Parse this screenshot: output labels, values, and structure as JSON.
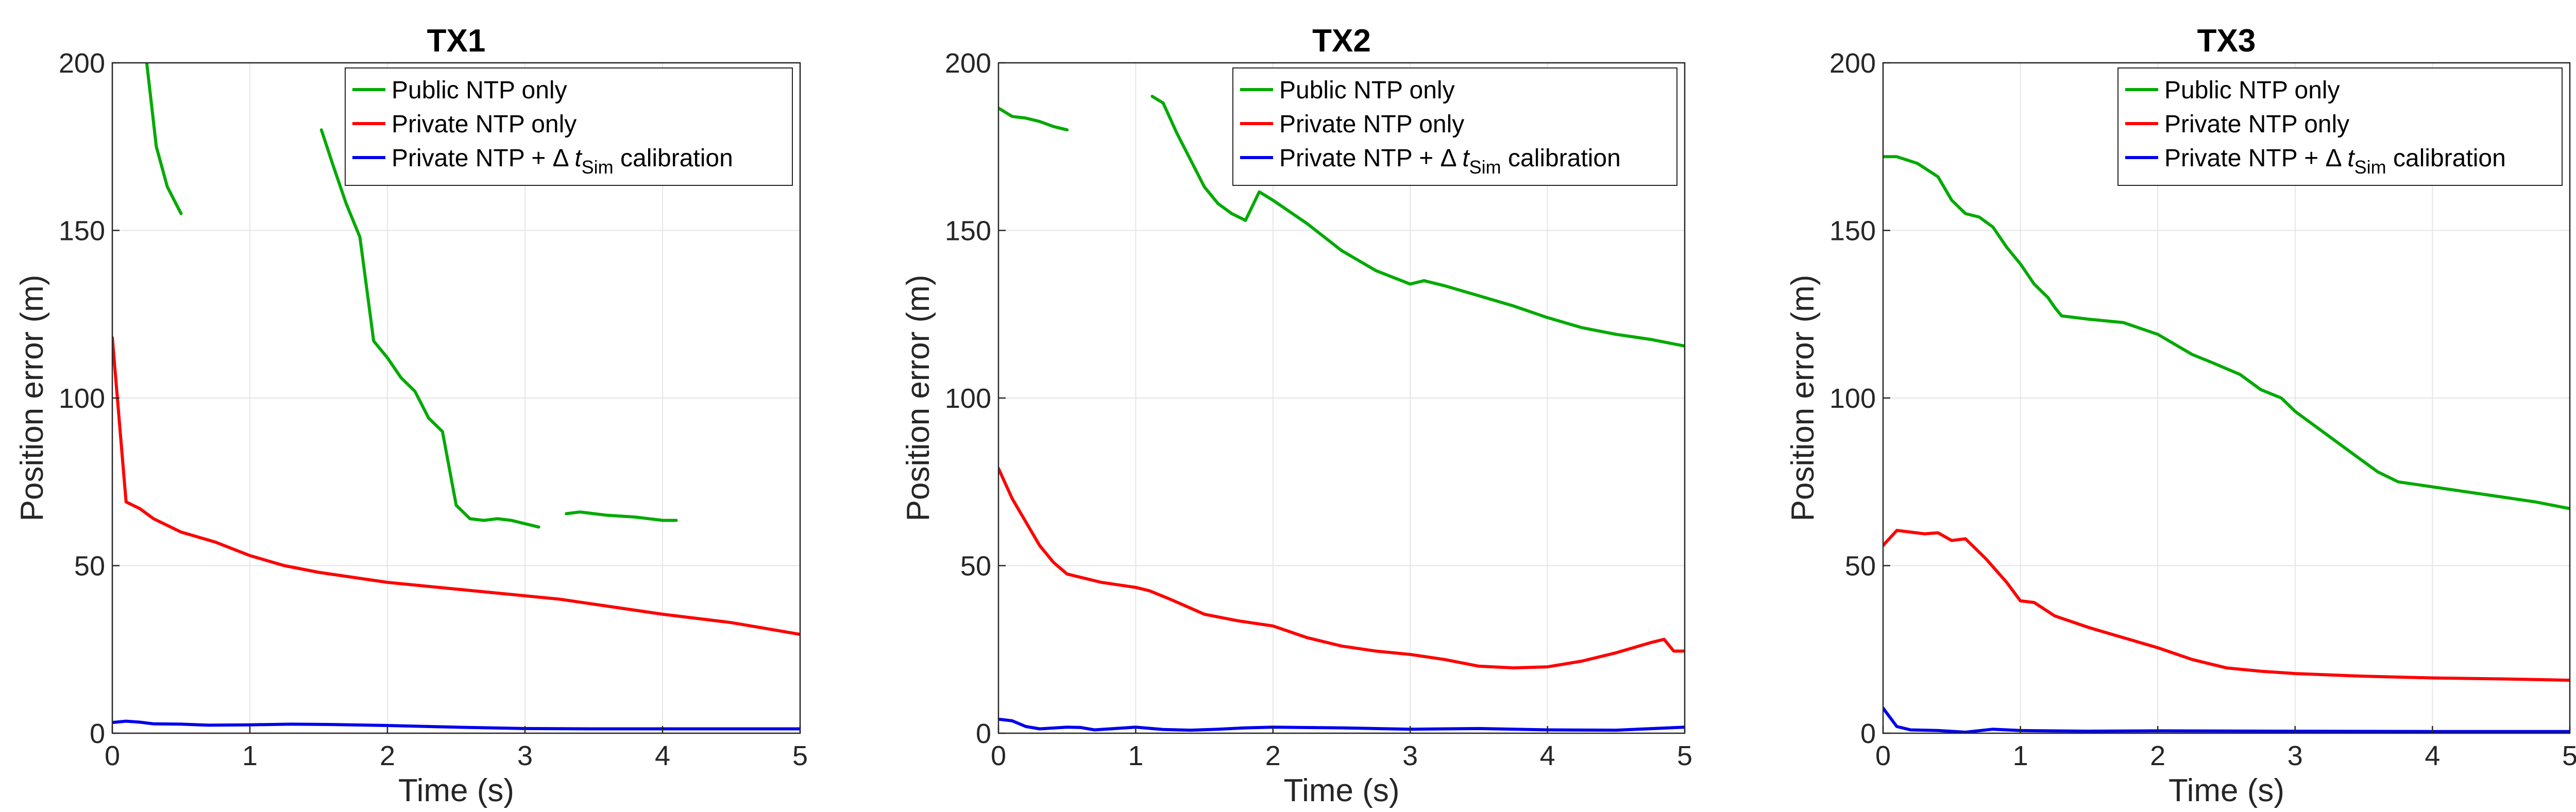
{
  "chart_data": [
    {
      "type": "line",
      "title": "TX1",
      "xlabel": "Time (s)",
      "ylabel": "Position error (m)",
      "xlim": [
        0,
        5
      ],
      "ylim": [
        0,
        200
      ],
      "xticks": [
        0,
        1,
        2,
        3,
        4,
        5
      ],
      "yticks": [
        0,
        50,
        100,
        150,
        200
      ],
      "grid": true,
      "legend_position": "top-right",
      "series": [
        {
          "name": "Public NTP only",
          "color": "#00aa00",
          "segments": [
            [
              [
                0.25,
                200
              ],
              [
                0.32,
                175
              ],
              [
                0.4,
                163
              ],
              [
                0.5,
                155
              ]
            ],
            [
              [
                1.52,
                180
              ],
              [
                1.6,
                170
              ],
              [
                1.7,
                158
              ],
              [
                1.8,
                148
              ],
              [
                1.9,
                117
              ],
              [
                2.0,
                112
              ],
              [
                2.1,
                106
              ],
              [
                2.2,
                102
              ],
              [
                2.3,
                94
              ],
              [
                2.4,
                90
              ],
              [
                2.5,
                68
              ],
              [
                2.6,
                64
              ],
              [
                2.7,
                63.5
              ],
              [
                2.8,
                64
              ],
              [
                2.9,
                63.5
              ],
              [
                3.0,
                62.5
              ],
              [
                3.1,
                61.5
              ]
            ],
            [
              [
                3.3,
                65.5
              ],
              [
                3.4,
                66
              ],
              [
                3.5,
                65.5
              ],
              [
                3.6,
                65
              ],
              [
                3.8,
                64.5
              ],
              [
                4.0,
                63.5
              ],
              [
                4.1,
                63.5
              ]
            ]
          ]
        },
        {
          "name": "Private NTP only",
          "color": "#ff0000",
          "segments": [
            [
              [
                0.0,
                118
              ],
              [
                0.1,
                69
              ],
              [
                0.2,
                67
              ],
              [
                0.3,
                64
              ],
              [
                0.5,
                60
              ],
              [
                0.75,
                57
              ],
              [
                1.0,
                53
              ],
              [
                1.25,
                50
              ],
              [
                1.5,
                48
              ],
              [
                2.0,
                45
              ],
              [
                2.5,
                43
              ],
              [
                3.0,
                41
              ],
              [
                3.25,
                40
              ],
              [
                3.5,
                38.5
              ],
              [
                4.0,
                35.5
              ],
              [
                4.5,
                33
              ],
              [
                5.0,
                29.5
              ]
            ]
          ]
        },
        {
          "name": "Private NTP + Δ t_Sim calibration",
          "color": "#0000ee",
          "segments": [
            [
              [
                0.0,
                3.2
              ],
              [
                0.1,
                3.6
              ],
              [
                0.2,
                3.3
              ],
              [
                0.3,
                2.8
              ],
              [
                0.5,
                2.7
              ],
              [
                0.7,
                2.4
              ],
              [
                1.0,
                2.5
              ],
              [
                1.3,
                2.7
              ],
              [
                1.6,
                2.6
              ],
              [
                2.0,
                2.3
              ],
              [
                2.5,
                1.8
              ],
              [
                3.0,
                1.4
              ],
              [
                3.5,
                1.3
              ],
              [
                4.0,
                1.3
              ],
              [
                4.5,
                1.3
              ],
              [
                5.0,
                1.3
              ]
            ]
          ]
        }
      ]
    },
    {
      "type": "line",
      "title": "TX2",
      "xlabel": "Time (s)",
      "ylabel": "Position error (m)",
      "xlim": [
        0,
        5
      ],
      "ylim": [
        0,
        200
      ],
      "xticks": [
        0,
        1,
        2,
        3,
        4,
        5
      ],
      "yticks": [
        0,
        50,
        100,
        150,
        200
      ],
      "grid": true,
      "legend_position": "top-right",
      "series": [
        {
          "name": "Public NTP only",
          "color": "#00aa00",
          "segments": [
            [
              [
                0.0,
                186.5
              ],
              [
                0.1,
                184
              ],
              [
                0.2,
                183.5
              ],
              [
                0.3,
                182.5
              ],
              [
                0.4,
                181
              ],
              [
                0.5,
                180
              ]
            ],
            [
              [
                1.12,
                190
              ],
              [
                1.2,
                188
              ],
              [
                1.3,
                179
              ],
              [
                1.4,
                171
              ],
              [
                1.5,
                163
              ],
              [
                1.6,
                158
              ],
              [
                1.7,
                155
              ],
              [
                1.8,
                153
              ],
              [
                1.9,
                161.5
              ],
              [
                2.0,
                159
              ],
              [
                2.25,
                152
              ],
              [
                2.5,
                144
              ],
              [
                2.75,
                138
              ],
              [
                3.0,
                134
              ],
              [
                3.1,
                135
              ],
              [
                3.25,
                133.5
              ],
              [
                3.5,
                130.5
              ],
              [
                3.75,
                127.5
              ],
              [
                4.0,
                124
              ],
              [
                4.25,
                121
              ],
              [
                4.5,
                119
              ],
              [
                4.75,
                117.5
              ],
              [
                5.0,
                115.5
              ]
            ]
          ]
        },
        {
          "name": "Private NTP only",
          "color": "#ff0000",
          "segments": [
            [
              [
                0.0,
                79
              ],
              [
                0.1,
                70
              ],
              [
                0.2,
                63
              ],
              [
                0.3,
                56
              ],
              [
                0.4,
                51
              ],
              [
                0.5,
                47.5
              ],
              [
                0.6,
                46.5
              ],
              [
                0.75,
                45
              ],
              [
                1.0,
                43.5
              ],
              [
                1.1,
                42.5
              ],
              [
                1.25,
                40
              ],
              [
                1.5,
                35.5
              ],
              [
                1.75,
                33.5
              ],
              [
                2.0,
                32
              ],
              [
                2.25,
                28.5
              ],
              [
                2.5,
                26
              ],
              [
                2.75,
                24.5
              ],
              [
                3.0,
                23.5
              ],
              [
                3.25,
                22
              ],
              [
                3.5,
                20
              ],
              [
                3.75,
                19.5
              ],
              [
                4.0,
                19.8
              ],
              [
                4.25,
                21.5
              ],
              [
                4.5,
                24
              ],
              [
                4.75,
                27
              ],
              [
                4.85,
                28
              ],
              [
                4.92,
                24.5
              ],
              [
                5.0,
                24.5
              ]
            ]
          ]
        },
        {
          "name": "Private NTP + Δ t_Sim calibration",
          "color": "#0000ee",
          "segments": [
            [
              [
                0.0,
                4.2
              ],
              [
                0.1,
                3.7
              ],
              [
                0.2,
                2.0
              ],
              [
                0.3,
                1.3
              ],
              [
                0.5,
                1.8
              ],
              [
                0.6,
                1.7
              ],
              [
                0.7,
                1.0
              ],
              [
                0.85,
                1.4
              ],
              [
                1.0,
                1.8
              ],
              [
                1.2,
                1.1
              ],
              [
                1.4,
                0.9
              ],
              [
                1.6,
                1.2
              ],
              [
                1.8,
                1.6
              ],
              [
                2.0,
                1.8
              ],
              [
                2.5,
                1.6
              ],
              [
                3.0,
                1.2
              ],
              [
                3.5,
                1.4
              ],
              [
                4.0,
                1.0
              ],
              [
                4.5,
                0.9
              ],
              [
                5.0,
                1.8
              ]
            ]
          ]
        }
      ]
    },
    {
      "type": "line",
      "title": "TX3",
      "xlabel": "Time (s)",
      "ylabel": "Position error (m)",
      "xlim": [
        0,
        5
      ],
      "ylim": [
        0,
        200
      ],
      "xticks": [
        0,
        1,
        2,
        3,
        4,
        5
      ],
      "yticks": [
        0,
        50,
        100,
        150,
        200
      ],
      "grid": true,
      "legend_position": "top-right",
      "series": [
        {
          "name": "Public NTP only",
          "color": "#00aa00",
          "segments": [
            [
              [
                0.0,
                172
              ],
              [
                0.1,
                172
              ],
              [
                0.25,
                170
              ],
              [
                0.4,
                166
              ],
              [
                0.5,
                159
              ],
              [
                0.6,
                155
              ],
              [
                0.7,
                154
              ],
              [
                0.8,
                151
              ],
              [
                0.9,
                145
              ],
              [
                1.0,
                140
              ],
              [
                1.1,
                134
              ],
              [
                1.2,
                130
              ],
              [
                1.25,
                127
              ],
              [
                1.3,
                124.5
              ],
              [
                1.5,
                123.5
              ],
              [
                1.75,
                122.5
              ],
              [
                2.0,
                119
              ],
              [
                2.25,
                113
              ],
              [
                2.4,
                110.5
              ],
              [
                2.6,
                107
              ],
              [
                2.75,
                102.5
              ],
              [
                2.9,
                100
              ],
              [
                3.0,
                96
              ],
              [
                3.2,
                90
              ],
              [
                3.4,
                84
              ],
              [
                3.6,
                78
              ],
              [
                3.75,
                75
              ],
              [
                4.0,
                73.5
              ],
              [
                4.25,
                72
              ],
              [
                4.5,
                70.5
              ],
              [
                4.75,
                69
              ],
              [
                5.0,
                67
              ]
            ]
          ]
        },
        {
          "name": "Private NTP only",
          "color": "#ff0000",
          "segments": [
            [
              [
                0.0,
                56
              ],
              [
                0.1,
                60.5
              ],
              [
                0.2,
                60
              ],
              [
                0.3,
                59.5
              ],
              [
                0.4,
                59.8
              ],
              [
                0.5,
                57.5
              ],
              [
                0.6,
                58
              ],
              [
                0.75,
                52
              ],
              [
                0.9,
                45
              ],
              [
                1.0,
                39.5
              ],
              [
                1.1,
                39
              ],
              [
                1.25,
                35
              ],
              [
                1.5,
                31.5
              ],
              [
                1.75,
                28.5
              ],
              [
                2.0,
                25.5
              ],
              [
                2.25,
                22
              ],
              [
                2.5,
                19.5
              ],
              [
                2.75,
                18.5
              ],
              [
                3.0,
                17.8
              ],
              [
                3.5,
                17
              ],
              [
                4.0,
                16.5
              ],
              [
                4.5,
                16.2
              ],
              [
                5.0,
                15.8
              ]
            ]
          ]
        },
        {
          "name": "Private NTP + Δ t_Sim calibration",
          "color": "#0000ee",
          "segments": [
            [
              [
                0.0,
                7.5
              ],
              [
                0.1,
                2.0
              ],
              [
                0.2,
                1.0
              ],
              [
                0.4,
                0.8
              ],
              [
                0.6,
                0.3
              ],
              [
                0.8,
                1.2
              ],
              [
                1.0,
                0.8
              ],
              [
                1.5,
                0.6
              ],
              [
                2.0,
                0.7
              ],
              [
                3.0,
                0.6
              ],
              [
                4.0,
                0.5
              ],
              [
                5.0,
                0.5
              ]
            ]
          ]
        }
      ]
    }
  ],
  "legend_labels": {
    "public": "Public NTP only",
    "private": "Private NTP only",
    "calib_prefix": "Private NTP + Δ ",
    "calib_var": "t",
    "calib_sub": "Sim",
    "calib_suffix": " calibration"
  }
}
